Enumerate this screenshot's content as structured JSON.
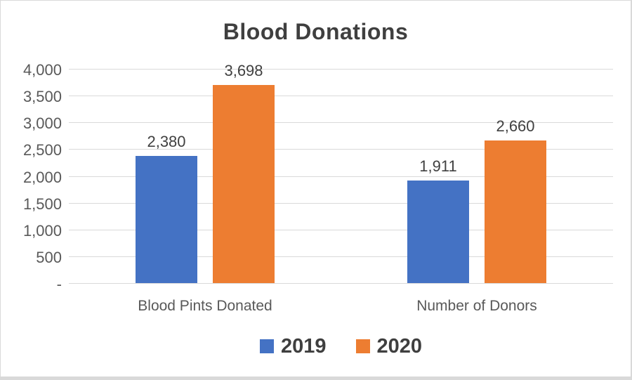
{
  "chart_data": {
    "type": "bar",
    "title": "Blood Donations",
    "categories": [
      "Blood Pints Donated",
      "Number of Donors"
    ],
    "series": [
      {
        "name": "2019",
        "color": "#4472C4",
        "values": [
          2380,
          1911
        ],
        "labels": [
          "2,380",
          "1,911"
        ]
      },
      {
        "name": "2020",
        "color": "#ED7D31",
        "values": [
          3698,
          2660
        ],
        "labels": [
          "3,698",
          "2,660"
        ]
      }
    ],
    "ylim": [
      0,
      4000
    ],
    "yticks": [
      {
        "value": 0,
        "label": "-"
      },
      {
        "value": 500,
        "label": "500"
      },
      {
        "value": 1000,
        "label": "1,000"
      },
      {
        "value": 1500,
        "label": "1,500"
      },
      {
        "value": 2000,
        "label": "2,000"
      },
      {
        "value": 2500,
        "label": "2,500"
      },
      {
        "value": 3000,
        "label": "3,000"
      },
      {
        "value": 3500,
        "label": "3,500"
      },
      {
        "value": 4000,
        "label": "4,000"
      }
    ],
    "grid": true,
    "legend_position": "bottom",
    "colors": {
      "grid": "#d9d9d9",
      "axis_text": "#595959",
      "label_text": "#404040"
    }
  }
}
